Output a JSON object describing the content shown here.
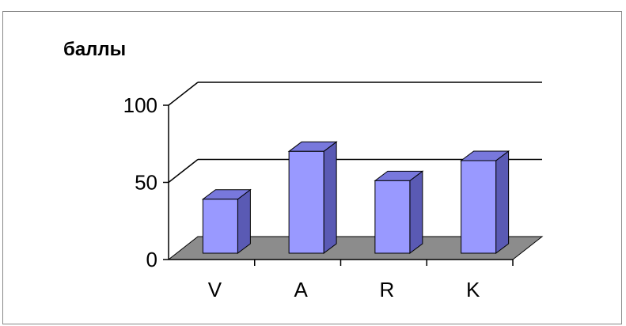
{
  "chart_data": {
    "type": "bar",
    "style": "3d",
    "ylabel": "баллы",
    "xlabel": "",
    "categories": [
      "V",
      "A",
      "R",
      "K"
    ],
    "values": [
      35,
      66,
      47,
      60
    ],
    "ylim": [
      0,
      100
    ],
    "yticks": [
      0,
      50,
      100
    ],
    "grid": true,
    "legend": "none",
    "colors": {
      "bar_front": "#9999ff",
      "bar_side": "#5a5ab4",
      "bar_top": "#7878dc",
      "floor": "#8c8c8c"
    }
  }
}
